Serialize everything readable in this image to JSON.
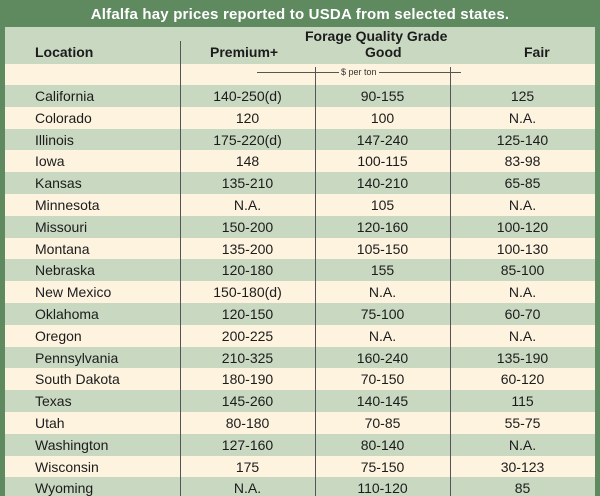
{
  "title": "Alfalfa hay prices reported to USDA from selected states.",
  "header": {
    "group_label": "Forage Quality Grade",
    "columns": [
      "Location",
      "Premium+",
      "Good",
      "Fair"
    ],
    "unit_label": "$ per ton"
  },
  "rows": [
    {
      "location": "California",
      "premium": "140-250(d)",
      "good": "90-155",
      "fair": "125"
    },
    {
      "location": "Colorado",
      "premium": "120",
      "good": "100",
      "fair": "N.A."
    },
    {
      "location": "Illinois",
      "premium": "175-220(d)",
      "good": "147-240",
      "fair": "125-140"
    },
    {
      "location": "Iowa",
      "premium": "148",
      "good": "100-115",
      "fair": "83-98"
    },
    {
      "location": "Kansas",
      "premium": "135-210",
      "good": "140-210",
      "fair": "65-85"
    },
    {
      "location": "Minnesota",
      "premium": "N.A.",
      "good": "105",
      "fair": "N.A."
    },
    {
      "location": "Missouri",
      "premium": "150-200",
      "good": "120-160",
      "fair": "100-120"
    },
    {
      "location": "Montana",
      "premium": "135-200",
      "good": "105-150",
      "fair": "100-130"
    },
    {
      "location": "Nebraska",
      "premium": "120-180",
      "good": "155",
      "fair": "85-100"
    },
    {
      "location": "New Mexico",
      "premium": "150-180(d)",
      "good": "N.A.",
      "fair": "N.A."
    },
    {
      "location": "Oklahoma",
      "premium": "120-150",
      "good": "75-100",
      "fair": "60-70"
    },
    {
      "location": "Oregon",
      "premium": "200-225",
      "good": "N.A.",
      "fair": "N.A."
    },
    {
      "location": "Pennsylvania",
      "premium": "210-325",
      "good": "160-240",
      "fair": "135-190"
    },
    {
      "location": "South Dakota",
      "premium": "180-190",
      "good": "70-150",
      "fair": "60-120"
    },
    {
      "location": "Texas",
      "premium": "145-260",
      "good": "140-145",
      "fair": "115"
    },
    {
      "location": "Utah",
      "premium": "80-180",
      "good": "70-85",
      "fair": "55-75"
    },
    {
      "location": "Washington",
      "premium": "127-160",
      "good": "80-140",
      "fair": "N.A."
    },
    {
      "location": "Wisconsin",
      "premium": "175",
      "good": "75-150",
      "fair": "30-123"
    },
    {
      "location": "Wyoming",
      "premium": "N.A.",
      "good": "110-120",
      "fair": "85"
    }
  ],
  "colors": {
    "frame": "#5f8a60",
    "shade": "#c9d8c1",
    "plain": "#fdf3df"
  }
}
